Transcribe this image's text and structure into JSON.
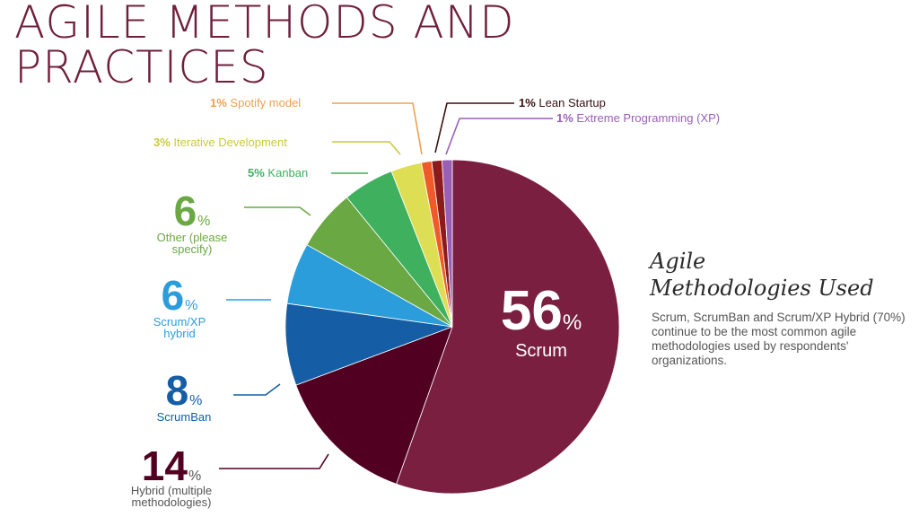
{
  "title_line1": "AGILE METHODS AND",
  "title_line2": "PRACTICES",
  "side_heading_line1": "Agile",
  "side_heading_line2": "Methodologies Used",
  "side_text": "Scrum, ScrumBan and Scrum/XP Hybrid (70%) continue to be the most common agile methodologies used by respondents' organizations.",
  "labels": {
    "scrum": {
      "value": "56",
      "unit": "%",
      "name": "Scrum"
    },
    "hybrid": {
      "value": "14",
      "unit": "%",
      "name": "Hybrid (multiple methodologies)"
    },
    "scrumban": {
      "value": "8",
      "unit": "%",
      "name": "ScrumBan"
    },
    "scrumxp": {
      "value": "6",
      "unit": "%",
      "name": "Scrum/XP hybrid"
    },
    "other": {
      "value": "6",
      "unit": "%",
      "name": "Other (please specify)"
    },
    "kanban": {
      "value": "5%",
      "name": "Kanban"
    },
    "iterative": {
      "value": "3%",
      "name": "Iterative Development"
    },
    "spotify": {
      "value": "1%",
      "name": "Spotify model"
    },
    "lean": {
      "value": "1%",
      "name": "Lean Startup"
    },
    "xp": {
      "value": "1%",
      "name": "Extreme Programming (XP)"
    }
  },
  "chart_data": {
    "type": "pie",
    "start": "12 o'clock",
    "direction": "clockwise",
    "slices": [
      {
        "name": "Scrum",
        "value": 56,
        "color": "#7a1f3f"
      },
      {
        "name": "Hybrid (multiple methodologies)",
        "value": 14,
        "color": "#520022"
      },
      {
        "name": "ScrumBan",
        "value": 8,
        "color": "#155ea6"
      },
      {
        "name": "Scrum/XP hybrid",
        "value": 6,
        "color": "#2b9ddb"
      },
      {
        "name": "Other (please specify)",
        "value": 6,
        "color": "#6aa843"
      },
      {
        "name": "Kanban",
        "value": 5,
        "color": "#3fb05e"
      },
      {
        "name": "Iterative Development",
        "value": 3,
        "color": "#dede55"
      },
      {
        "name": "Spotify model",
        "value": 1,
        "color": "#f05a28"
      },
      {
        "name": "Lean Startup",
        "value": 1,
        "color": "#8c1c1c"
      },
      {
        "name": "Extreme Programming (XP)",
        "value": 1,
        "color": "#9b5fb5"
      }
    ],
    "label_colors": {
      "Hybrid (multiple methodologies)": "#520022",
      "ScrumBan": "#155ea6",
      "Scrum/XP hybrid": "#2b9ddb",
      "Other (please specify)": "#6aa843",
      "Kanban": "#3fb05e",
      "Iterative Development": "#c9c93c",
      "Spotify model": "#f0a050",
      "Lean Startup": "#6b1a1a",
      "Extreme Programming (XP)": "#9b5fb5"
    }
  }
}
